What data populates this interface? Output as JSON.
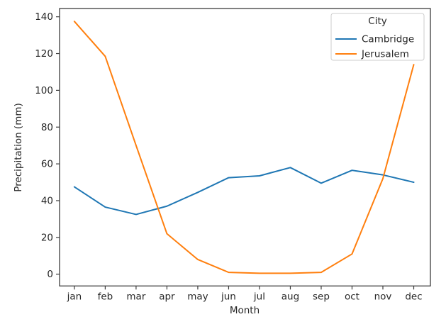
{
  "chart_data": {
    "type": "line",
    "title": "",
    "xlabel": "Month",
    "ylabel": "Precipitation (mm)",
    "categories": [
      "jan",
      "feb",
      "mar",
      "apr",
      "may",
      "jun",
      "jul",
      "aug",
      "sep",
      "oct",
      "nov",
      "dec"
    ],
    "series": [
      {
        "name": "Cambridge",
        "color": "#1f77b4",
        "values": [
          47.5,
          36.5,
          32.5,
          37,
          44.5,
          52.5,
          53.5,
          58,
          49.5,
          56.5,
          54,
          50
        ]
      },
      {
        "name": "Jerusalem",
        "color": "#ff7f0e",
        "values": [
          137.5,
          118.5,
          70,
          22,
          8,
          1,
          0.5,
          0.5,
          1,
          11,
          52,
          114
        ]
      }
    ],
    "yticks": [
      0,
      20,
      40,
      60,
      80,
      100,
      120,
      140
    ],
    "ylim": [
      -6.4,
      144.5
    ],
    "xlim": [
      -0.48,
      11.54
    ],
    "legend": {
      "title": "City",
      "position": "upper right"
    },
    "grid": false,
    "frame": true,
    "colors": {
      "spine": "#3c3c3c",
      "text": "#262626",
      "legend_border": "#cccccc",
      "background": "#ffffff"
    }
  }
}
